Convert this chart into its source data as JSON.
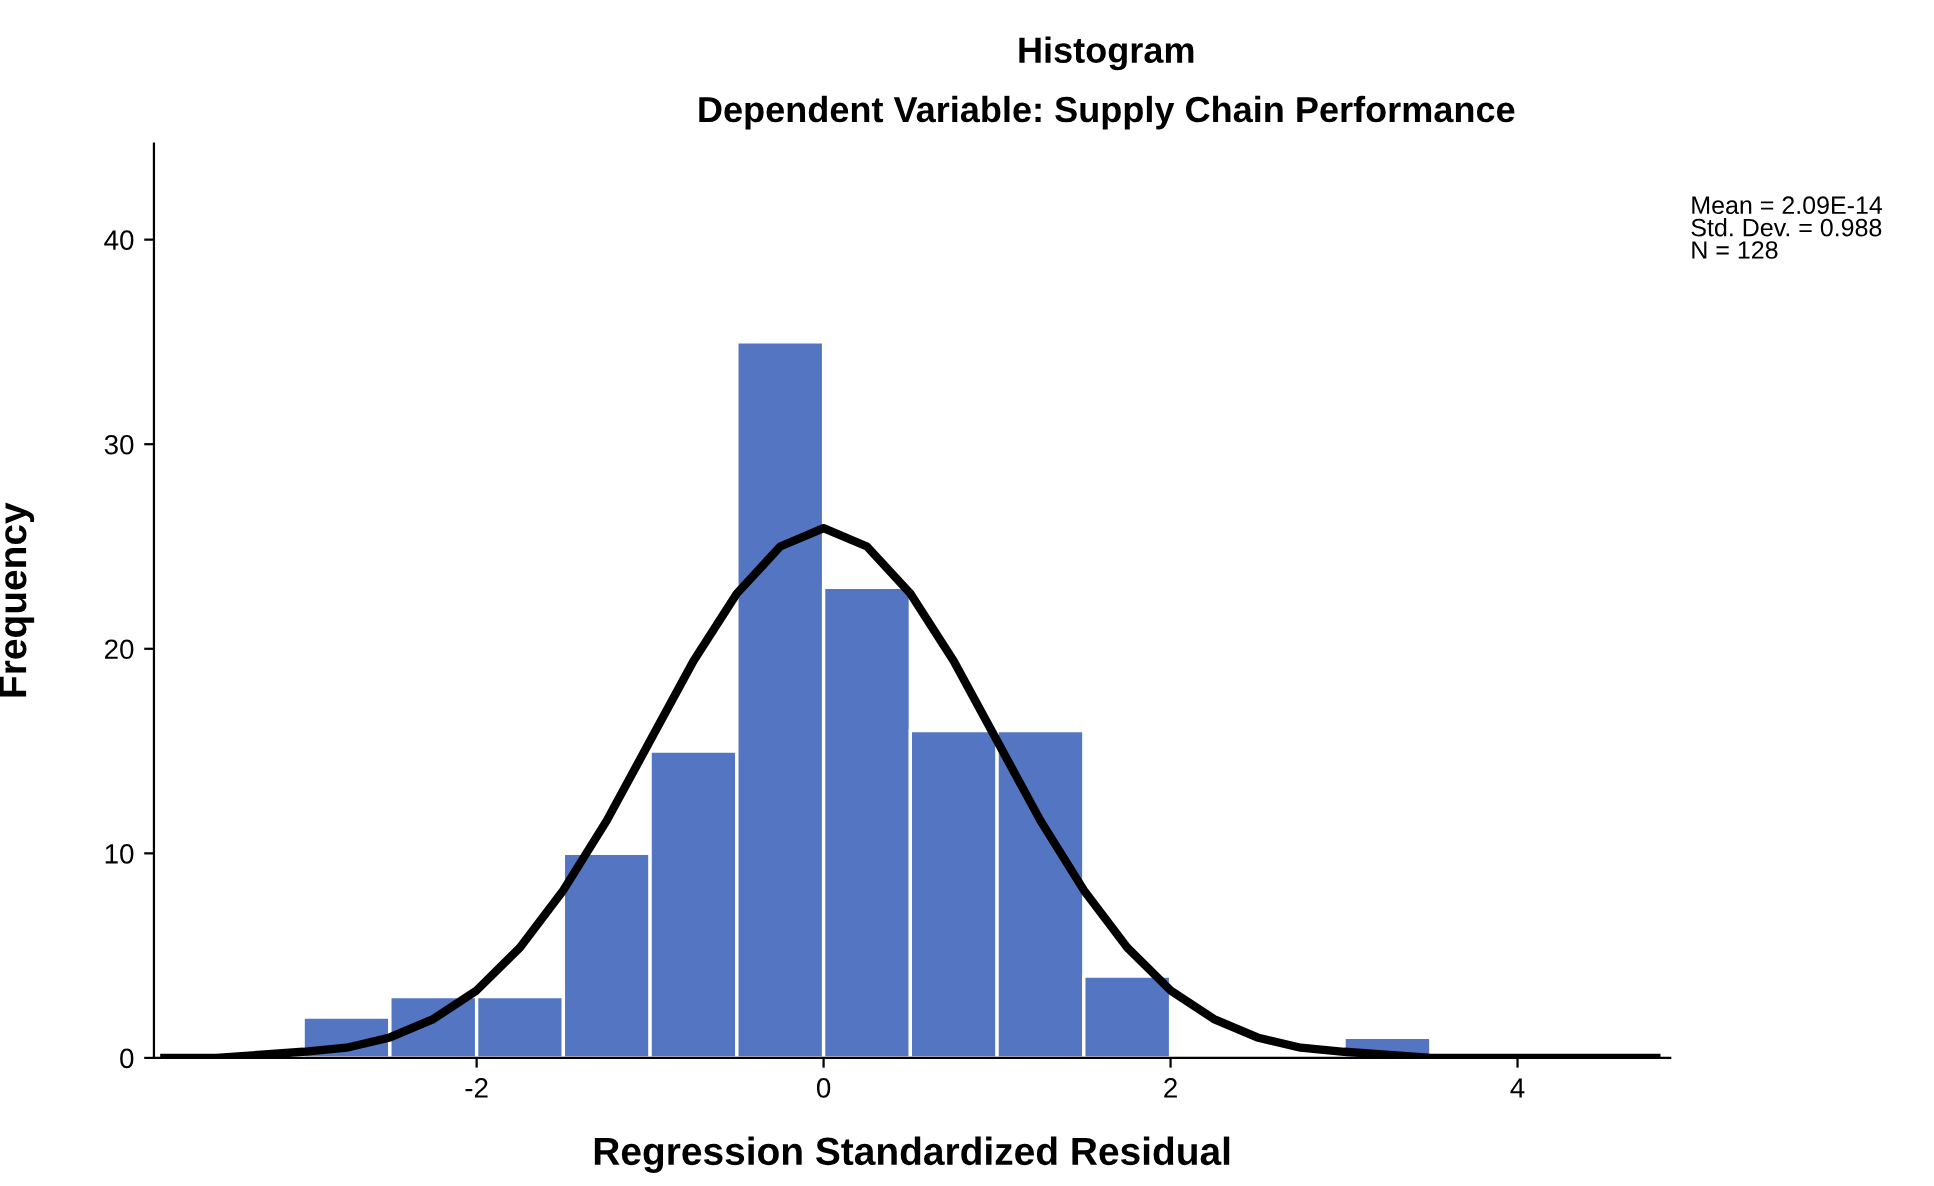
{
  "chart_data": {
    "type": "histogram",
    "title": "Histogram",
    "subtitle": "Dependent Variable: Supply Chain Performance",
    "xlabel": "Regression Standardized Residual",
    "ylabel": "Frequency",
    "series": [
      {
        "color": "#5475c1",
        "bins": [
          -3,
          -2.5,
          -2,
          -1.5,
          -1,
          -0.5,
          0,
          0.5,
          1,
          1.5,
          2,
          2.5,
          3,
          3.5
        ],
        "values": [
          2,
          3,
          3,
          10,
          15,
          35,
          23,
          16,
          16,
          4,
          0,
          0,
          1
        ]
      },
      {
        "type": "line",
        "color": "#000000",
        "x": [
          -3.8,
          -3.5,
          -3,
          -2.75,
          -2.5,
          -2.25,
          -2,
          -1.75,
          -1.5,
          -1.25,
          -1,
          -0.75,
          -0.5,
          -0.25,
          0,
          0.25,
          0.5,
          0.75,
          1,
          1.25,
          1.5,
          1.75,
          2,
          2.25,
          2.5,
          2.75,
          3,
          3.5,
          4,
          4.8
        ],
        "values": [
          0,
          0,
          0.3,
          0.5,
          1,
          1.9,
          3.3,
          5.4,
          8.2,
          11.6,
          15.5,
          19.4,
          22.7,
          25,
          25.9,
          25,
          22.7,
          19.4,
          15.5,
          11.6,
          8.2,
          5.4,
          3.3,
          1.9,
          1,
          0.5,
          0.3,
          0,
          0,
          0
        ]
      }
    ],
    "xlim": [
      -3.86,
      4.88
    ],
    "xticks": [
      -2,
      0,
      2,
      4
    ],
    "ylim": [
      0,
      44.7
    ],
    "yticks": [
      0,
      10,
      20,
      30,
      40
    ],
    "grid": false,
    "legend": false,
    "annotations": [
      "Mean = 2.09E-14\nStd. Dev. = 0.988\nN = 128"
    ]
  }
}
